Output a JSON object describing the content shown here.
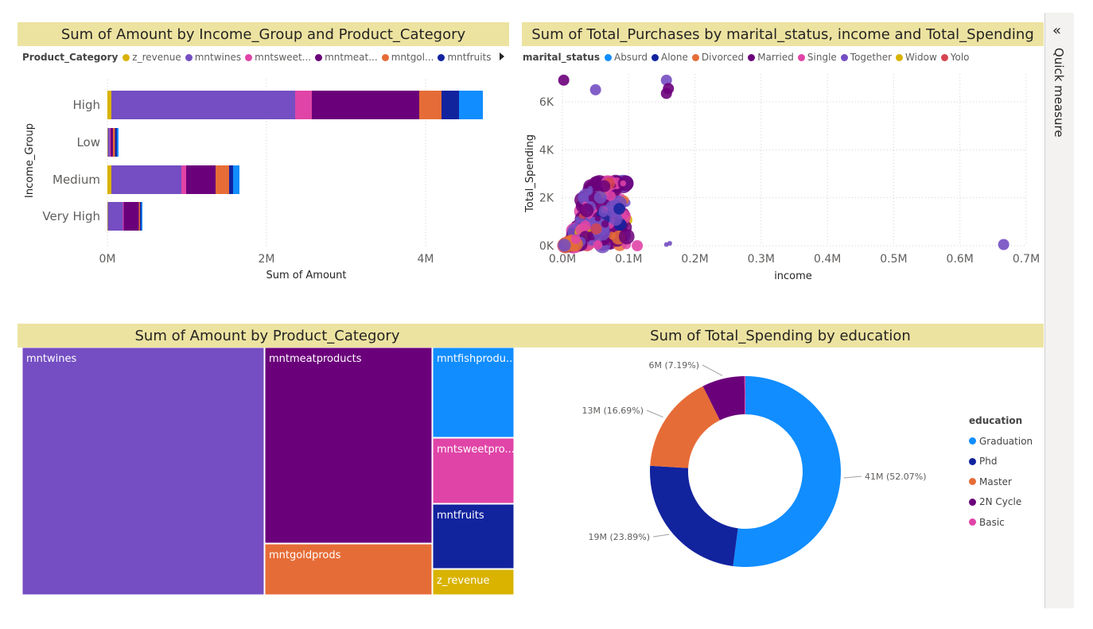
{
  "charts_titles": {
    "bar": "Sum of Amount by Income_Group and Product_Category",
    "scatter": "Sum of Total_Purchases by marital_status, income and Total_Spending",
    "treemap": "Sum of Amount by Product_Category",
    "donut": "Sum of Total_Spending by education"
  },
  "quick_measure": "Quick measure",
  "chart_data": [
    {
      "type": "bar",
      "orientation": "horizontal-stacked",
      "title": "Sum of Amount by Income_Group and Product_Category",
      "xlabel": "Sum of Amount",
      "ylabel": "Income_Group",
      "xticks": [
        "0M",
        "2M",
        "4M"
      ],
      "xlim": [
        0,
        4700000
      ],
      "legend_title": "Product_Category",
      "legend_labels": [
        "z_revenue",
        "mntwines",
        "mntsweet...",
        "mntmeat...",
        "mntgol...",
        "mntfruits"
      ],
      "categories": [
        "High",
        "Low",
        "Medium",
        "Very High"
      ],
      "series": [
        {
          "name": "z_revenue",
          "color": "#d9b300",
          "values": [
            50000,
            5000,
            50000,
            5000
          ]
        },
        {
          "name": "mntwines",
          "color": "#744ec2",
          "values": [
            2310000,
            25000,
            880000,
            190000
          ]
        },
        {
          "name": "mntsweetproducts",
          "color": "#e044a7",
          "values": [
            210000,
            10000,
            60000,
            10000
          ]
        },
        {
          "name": "mntmeatproducts",
          "color": "#6b007b",
          "values": [
            1350000,
            30000,
            370000,
            190000
          ]
        },
        {
          "name": "mntgoldprods",
          "color": "#e66c37",
          "values": [
            280000,
            25000,
            170000,
            15000
          ]
        },
        {
          "name": "mntfruits",
          "color": "#12239e",
          "values": [
            220000,
            25000,
            50000,
            15000
          ]
        },
        {
          "name": "mntfishproducts",
          "color": "#118dff",
          "values": [
            300000,
            20000,
            80000,
            15000
          ]
        }
      ]
    },
    {
      "type": "scatter",
      "title": "Sum of Total_Purchases by marital_status, income and Total_Spending",
      "xlabel": "income",
      "ylabel": "Total_Spending",
      "xticks": [
        "0.0M",
        "0.1M",
        "0.2M",
        "0.3M",
        "0.4M",
        "0.5M",
        "0.6M",
        "0.7M"
      ],
      "yticks": [
        "0K",
        "2K",
        "4K",
        "6K"
      ],
      "xlim": [
        0,
        700000
      ],
      "ylim": [
        0,
        6000
      ],
      "legend_title": "marital_status",
      "series": [
        {
          "name": "Absurd",
          "color": "#118dff"
        },
        {
          "name": "Alone",
          "color": "#12239e"
        },
        {
          "name": "Divorced",
          "color": "#e66c37"
        },
        {
          "name": "Married",
          "color": "#6b007b"
        },
        {
          "name": "Single",
          "color": "#e044a7"
        },
        {
          "name": "Together",
          "color": "#744ec2"
        },
        {
          "name": "Widow",
          "color": "#d9b300"
        },
        {
          "name": "Yolo",
          "color": "#d64550"
        }
      ],
      "outliers": [
        {
          "x": 2000,
          "y": 6900,
          "status": "Married"
        },
        {
          "x": 157000,
          "y": 6900,
          "status": "Together"
        },
        {
          "x": 157000,
          "y": 6350,
          "status": "Married"
        },
        {
          "x": 160000,
          "y": 6550,
          "status": "Married"
        },
        {
          "x": 50000,
          "y": 6500,
          "status": "Together"
        },
        {
          "x": 113000,
          "y": 0,
          "status": "Single"
        },
        {
          "x": 157000,
          "y": 50,
          "status": "Together"
        },
        {
          "x": 162000,
          "y": 100,
          "status": "Together"
        },
        {
          "x": 666000,
          "y": 50,
          "status": "Together"
        }
      ]
    },
    {
      "type": "treemap",
      "title": "Sum of Amount by Product_Category",
      "items": [
        {
          "name": "mntwines",
          "color": "#744ec2"
        },
        {
          "name": "mntmeatproducts",
          "color": "#6b007b"
        },
        {
          "name": "mntgoldprods",
          "color": "#e66c37"
        },
        {
          "name": "mntfishprodu...",
          "color": "#118dff"
        },
        {
          "name": "mntsweetpro...",
          "color": "#e044a7"
        },
        {
          "name": "mntfruits",
          "color": "#12239e"
        },
        {
          "name": "z_revenue",
          "color": "#d9b300"
        }
      ]
    },
    {
      "type": "pie",
      "variant": "donut",
      "title": "Sum of Total_Spending by education",
      "legend_title": "education",
      "slices": [
        {
          "name": "Graduation",
          "value": 41,
          "percent": 52.07,
          "label": "41M (52.07%)",
          "color": "#118dff"
        },
        {
          "name": "Phd",
          "value": 19,
          "percent": 23.89,
          "label": "19M (23.89%)",
          "color": "#12239e"
        },
        {
          "name": "Master",
          "value": 13,
          "percent": 16.69,
          "label": "13M (16.69%)",
          "color": "#e66c37"
        },
        {
          "name": "2N Cycle",
          "value": 6,
          "percent": 7.19,
          "label": "6M (7.19%)",
          "color": "#6b007b"
        },
        {
          "name": "Basic",
          "value": 0.1,
          "percent": 0.16,
          "label": "",
          "color": "#e044a7"
        }
      ]
    }
  ]
}
